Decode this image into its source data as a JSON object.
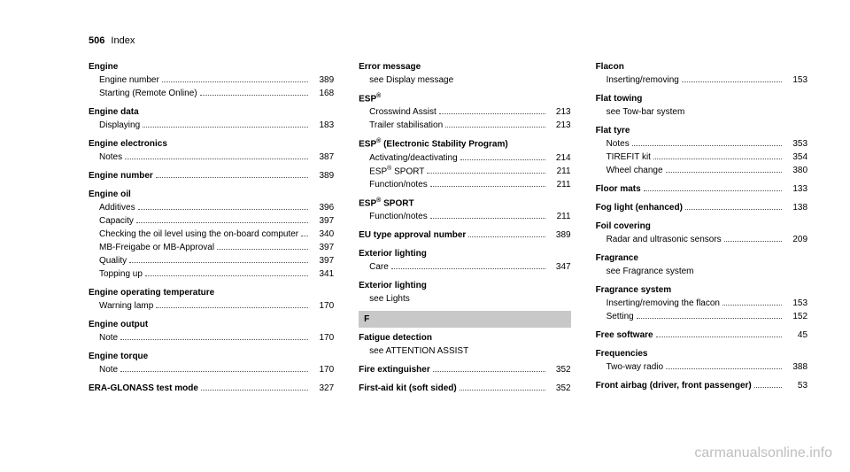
{
  "page_header": {
    "number": "506",
    "label": "Index"
  },
  "watermark": "carmanualsonline.info",
  "columns": [
    {
      "entries": [
        {
          "title": "Engine",
          "subs": [
            {
              "label": "Engine number",
              "page": "389"
            },
            {
              "label": "Starting (Remote Online)",
              "page": "168"
            }
          ]
        },
        {
          "title": "Engine data",
          "subs": [
            {
              "label": "Displaying",
              "page": "183"
            }
          ]
        },
        {
          "title": "Engine electronics",
          "subs": [
            {
              "label": "Notes",
              "page": "387"
            }
          ]
        },
        {
          "title_row": {
            "label": "Engine number",
            "page": "389"
          }
        },
        {
          "title": "Engine oil",
          "subs": [
            {
              "label": "Additives",
              "page": "396"
            },
            {
              "label": "Capacity",
              "page": "397"
            },
            {
              "label": "Checking the oil level using the on-board computer",
              "page": "340"
            },
            {
              "label": "MB-Freigabe or MB-Approval",
              "page": "397"
            },
            {
              "label": "Quality",
              "page": "397"
            },
            {
              "label": "Topping up",
              "page": "341"
            }
          ]
        },
        {
          "title": "Engine operating temperature",
          "subs": [
            {
              "label": "Warning lamp",
              "page": "170"
            }
          ]
        },
        {
          "title": "Engine output",
          "subs": [
            {
              "label": "Note",
              "page": "170"
            }
          ]
        },
        {
          "title": "Engine torque",
          "subs": [
            {
              "label": "Note",
              "page": "170"
            }
          ]
        },
        {
          "title_row": {
            "label": "ERA-GLONASS test mode",
            "page": "327"
          }
        }
      ]
    },
    {
      "entries": [
        {
          "title": "Error message",
          "subs": [
            {
              "text": "see Display message"
            }
          ]
        },
        {
          "title_html": "ESP<sup>®</sup>",
          "subs": [
            {
              "label": "Crosswind Assist",
              "page": "213"
            },
            {
              "label": "Trailer stabilisation",
              "page": "213"
            }
          ]
        },
        {
          "title_html": "ESP<sup>®</sup> (Electronic Stability Program)",
          "subs": [
            {
              "label": "Activating/deactivating",
              "page": "214"
            },
            {
              "label_html": "ESP<sup>®</sup> SPORT",
              "page": "211"
            },
            {
              "label": "Function/notes",
              "page": "211"
            }
          ]
        },
        {
          "title_html": "ESP<sup>®</sup> SPORT",
          "subs": [
            {
              "label": "Function/notes",
              "page": "211"
            }
          ]
        },
        {
          "title_row": {
            "label": "EU type approval number",
            "page": "389"
          }
        },
        {
          "title": "Exterior lighting",
          "subs": [
            {
              "label": "Care",
              "page": "347"
            }
          ]
        },
        {
          "title": "Exterior lighting",
          "subs": [
            {
              "text": "see Lights"
            }
          ]
        },
        {
          "section": "F"
        },
        {
          "title": "Fatigue detection",
          "subs": [
            {
              "text": "see ATTENTION ASSIST"
            }
          ]
        },
        {
          "title_row": {
            "label": "Fire extinguisher",
            "page": "352"
          }
        },
        {
          "title_row": {
            "label": "First-aid kit (soft sided)",
            "page": "352"
          }
        }
      ]
    },
    {
      "entries": [
        {
          "title": "Flacon",
          "subs": [
            {
              "label": "Inserting/removing",
              "page": "153"
            }
          ]
        },
        {
          "title": "Flat towing",
          "subs": [
            {
              "text": "see Tow-bar system"
            }
          ]
        },
        {
          "title": "Flat tyre",
          "subs": [
            {
              "label": "Notes",
              "page": "353"
            },
            {
              "label": "TIREFIT kit",
              "page": "354"
            },
            {
              "label": "Wheel change",
              "page": "380"
            }
          ]
        },
        {
          "title_row": {
            "label": "Floor mats",
            "page": "133"
          }
        },
        {
          "title_row": {
            "label": "Fog light (enhanced)",
            "page": "138"
          }
        },
        {
          "title": "Foil covering",
          "subs": [
            {
              "label": "Radar and ultrasonic sensors",
              "page": "209"
            }
          ]
        },
        {
          "title": "Fragrance",
          "subs": [
            {
              "text": "see Fragrance system"
            }
          ]
        },
        {
          "title": "Fragrance system",
          "subs": [
            {
              "label": "Inserting/removing the flacon",
              "page": "153"
            },
            {
              "label": "Setting",
              "page": "152"
            }
          ]
        },
        {
          "title_row": {
            "label": "Free software",
            "page": "45"
          }
        },
        {
          "title": "Frequencies",
          "subs": [
            {
              "label": "Two-way radio",
              "page": "388"
            }
          ]
        },
        {
          "title_row": {
            "label": "Front airbag (driver, front passenger)",
            "page": "53"
          }
        }
      ]
    }
  ]
}
